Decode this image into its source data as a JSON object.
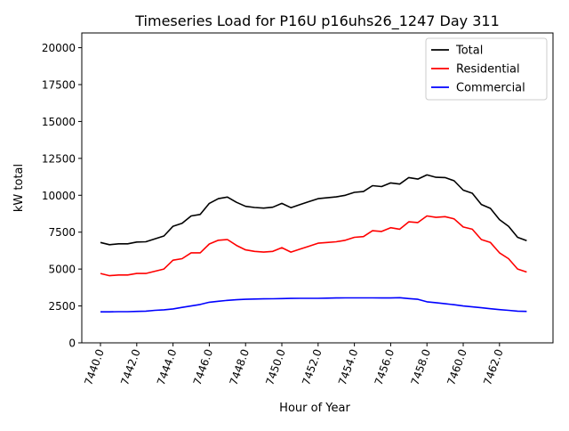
{
  "chart_data": {
    "type": "line",
    "title": "Timeseries Load for P16U p16uhs26_1247  Day 311",
    "xlabel": "Hour of Year",
    "ylabel": "kW total",
    "xlim": [
      7438.97,
      7464.95
    ],
    "ylim": [
      0,
      21000
    ],
    "xticks": [
      7440,
      7442,
      7444,
      7446,
      7448,
      7450,
      7452,
      7454,
      7456,
      7458,
      7460,
      7462
    ],
    "xtick_labels": [
      "7440.0",
      "7442.0",
      "7444.0",
      "7446.0",
      "7448.0",
      "7450.0",
      "7452.0",
      "7454.0",
      "7456.0",
      "7458.0",
      "7460.0",
      "7462.0"
    ],
    "yticks": [
      0,
      2500,
      5000,
      7500,
      10000,
      12500,
      15000,
      17500,
      20000
    ],
    "ytick_labels": [
      "0",
      "2500",
      "5000",
      "7500",
      "10000",
      "12500",
      "15000",
      "17500",
      "20000"
    ],
    "grid": false,
    "legend_position": "top-right",
    "x": [
      7440,
      7440.5,
      7441,
      7441.5,
      7442,
      7442.5,
      7443,
      7443.5,
      7444,
      7444.5,
      7445,
      7445.5,
      7446,
      7446.5,
      7447,
      7447.5,
      7448,
      7448.5,
      7449,
      7449.5,
      7450,
      7450.5,
      7451,
      7451.5,
      7452,
      7452.5,
      7453,
      7453.5,
      7454,
      7454.5,
      7455,
      7455.5,
      7456,
      7456.5,
      7457,
      7457.5,
      7458,
      7458.5,
      7459,
      7459.5,
      7460,
      7460.5,
      7461,
      7461.5,
      7462,
      7462.5,
      7463,
      7463.5
    ],
    "series": [
      {
        "name": "Total",
        "color": "#000000",
        "values": [
          6800,
          6650,
          6710,
          6710,
          6830,
          6850,
          7050,
          7240,
          7900,
          8100,
          8600,
          8700,
          9450,
          9770,
          9880,
          9520,
          9250,
          9170,
          9130,
          9190,
          9450,
          9160,
          9370,
          9570,
          9770,
          9830,
          9890,
          10000,
          10200,
          10250,
          10650,
          10590,
          10840,
          10760,
          11200,
          11100,
          11380,
          11220,
          11200,
          10980,
          10350,
          10140,
          9380,
          9110,
          8350,
          7900,
          7150,
          6930
        ]
      },
      {
        "name": "Residential",
        "color": "#ff0000",
        "values": [
          4700,
          4550,
          4600,
          4600,
          4700,
          4700,
          4850,
          5000,
          5600,
          5700,
          6100,
          6100,
          6700,
          6950,
          7000,
          6600,
          6300,
          6200,
          6150,
          6200,
          6450,
          6150,
          6350,
          6550,
          6750,
          6800,
          6850,
          6950,
          7150,
          7200,
          7600,
          7550,
          7800,
          7700,
          8200,
          8150,
          8600,
          8500,
          8550,
          8400,
          7850,
          7700,
          7000,
          6800,
          6100,
          5700,
          5000,
          4800
        ]
      },
      {
        "name": "Commercial",
        "color": "#0000ff",
        "values": [
          2100,
          2100,
          2110,
          2110,
          2130,
          2150,
          2200,
          2240,
          2300,
          2400,
          2500,
          2600,
          2750,
          2820,
          2880,
          2920,
          2950,
          2970,
          2980,
          2990,
          3000,
          3010,
          3020,
          3020,
          3020,
          3030,
          3040,
          3050,
          3050,
          3050,
          3050,
          3040,
          3040,
          3060,
          3000,
          2950,
          2780,
          2720,
          2650,
          2580,
          2500,
          2440,
          2380,
          2310,
          2250,
          2200,
          2150,
          2130
        ]
      }
    ]
  }
}
